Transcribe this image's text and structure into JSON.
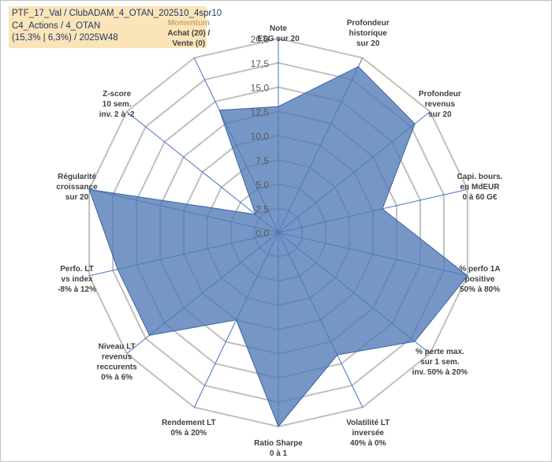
{
  "chart_data": {
    "type": "radar",
    "title_lines": [
      "PTF_17_Val / ClubADAM_4_OTAN_202510_4spr10",
      "C4_Actions / 4_OTAN",
      "(15,3% | 6,3%) / 2025W48"
    ],
    "r_range": [
      0,
      20
    ],
    "r_ticks": [
      "0,0",
      "2,5",
      "5,0",
      "7,5",
      "10,0",
      "12,5",
      "15,0",
      "17,5",
      "20,0"
    ],
    "series": [
      {
        "name": "PTF_17_Val",
        "color": "#4f7ab5",
        "values": [
          13,
          19,
          18,
          11,
          20,
          18,
          14,
          20,
          10,
          17,
          17,
          20,
          3,
          14
        ]
      }
    ],
    "axes": [
      {
        "lines": [
          "Note",
          "ESG sur 20"
        ]
      },
      {
        "lines": [
          "Profondeur",
          "historique",
          "sur 20"
        ]
      },
      {
        "lines": [
          "Profondeur",
          "revenus",
          "sur 20"
        ]
      },
      {
        "lines": [
          "Capi. bours.",
          "en MdEUR",
          "0 à 60 G€"
        ]
      },
      {
        "lines": [
          "% perfo 1A",
          "positive",
          "50% à 80%"
        ]
      },
      {
        "lines": [
          "% perte max.",
          "sur 1 sem.",
          "inv. 50% à 20%"
        ]
      },
      {
        "lines": [
          "Volatilité LT",
          "inversée",
          "40% à 0%"
        ]
      },
      {
        "lines": [
          "Ratio Sharpe",
          "0 à 1"
        ]
      },
      {
        "lines": [
          "Rendement LT",
          "0% à 20%"
        ]
      },
      {
        "lines": [
          "Niveau LT",
          "revenus",
          "reccurents",
          "0% à 6%"
        ]
      },
      {
        "lines": [
          "Perfo. LT",
          "vs index",
          "-8% à 12%"
        ]
      },
      {
        "lines": [
          "Régularité",
          "croissance",
          "sur 20"
        ]
      },
      {
        "lines": [
          "Z-score",
          "10 sem.",
          "inv. 2 à -2"
        ]
      },
      {
        "lines": [
          "Momentum",
          "Achat (20) /",
          "Vente (0)"
        ],
        "first_line_color": "#c9a86a"
      }
    ]
  }
}
